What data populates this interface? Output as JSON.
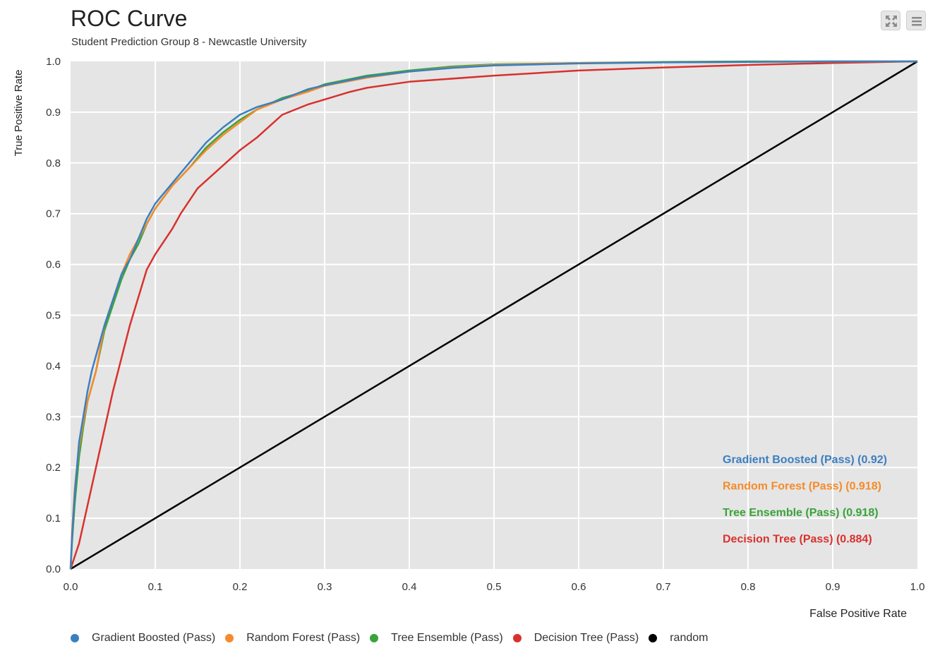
{
  "header": {
    "title": "ROC Curve",
    "subtitle": "Student Prediction Group 8 - Newcastle University"
  },
  "toolbar": {
    "fullscreen_icon": "fullscreen-icon",
    "menu_icon": "menu-icon"
  },
  "chart_data": {
    "type": "line",
    "title": "ROC Curve",
    "subtitle": "Student Prediction Group 8 - Newcastle University",
    "xlabel": "False Positive Rate",
    "ylabel": "True Positive Rate",
    "xlim": [
      0,
      1
    ],
    "ylim": [
      0,
      1
    ],
    "xticks": [
      "0.0",
      "0.1",
      "0.2",
      "0.3",
      "0.4",
      "0.5",
      "0.6",
      "0.7",
      "0.8",
      "0.9",
      "1.0"
    ],
    "yticks": [
      "0.0",
      "0.1",
      "0.2",
      "0.3",
      "0.4",
      "0.5",
      "0.6",
      "0.7",
      "0.8",
      "0.9",
      "1.0"
    ],
    "grid": true,
    "plot_background": "#e5e5e5",
    "legend_position": "bottom-left",
    "series": [
      {
        "name": "Gradient Boosted (Pass)",
        "color": "#3c7fc0",
        "annotation": "Gradient Boosted (Pass) (0.92)",
        "points": [
          [
            0,
            0
          ],
          [
            0.002,
            0.07
          ],
          [
            0.005,
            0.15
          ],
          [
            0.01,
            0.25
          ],
          [
            0.015,
            0.3
          ],
          [
            0.02,
            0.35
          ],
          [
            0.025,
            0.39
          ],
          [
            0.03,
            0.42
          ],
          [
            0.04,
            0.48
          ],
          [
            0.05,
            0.53
          ],
          [
            0.06,
            0.58
          ],
          [
            0.07,
            0.61
          ],
          [
            0.08,
            0.65
          ],
          [
            0.09,
            0.69
          ],
          [
            0.1,
            0.72
          ],
          [
            0.12,
            0.76
          ],
          [
            0.14,
            0.8
          ],
          [
            0.16,
            0.84
          ],
          [
            0.18,
            0.87
          ],
          [
            0.2,
            0.895
          ],
          [
            0.22,
            0.91
          ],
          [
            0.25,
            0.925
          ],
          [
            0.28,
            0.945
          ],
          [
            0.3,
            0.953
          ],
          [
            0.35,
            0.97
          ],
          [
            0.4,
            0.98
          ],
          [
            0.45,
            0.987
          ],
          [
            0.5,
            0.992
          ],
          [
            0.6,
            0.996
          ],
          [
            0.7,
            0.998
          ],
          [
            0.8,
            0.999
          ],
          [
            0.9,
            1.0
          ],
          [
            1.0,
            1.0
          ]
        ]
      },
      {
        "name": "Random Forest (Pass)",
        "color": "#f58b2a",
        "annotation": "Random Forest (Pass) (0.918)",
        "points": [
          [
            0,
            0
          ],
          [
            0.002,
            0.08
          ],
          [
            0.005,
            0.16
          ],
          [
            0.01,
            0.24
          ],
          [
            0.015,
            0.29
          ],
          [
            0.02,
            0.33
          ],
          [
            0.025,
            0.36
          ],
          [
            0.03,
            0.39
          ],
          [
            0.04,
            0.48
          ],
          [
            0.05,
            0.53
          ],
          [
            0.06,
            0.58
          ],
          [
            0.07,
            0.62
          ],
          [
            0.08,
            0.65
          ],
          [
            0.09,
            0.68
          ],
          [
            0.1,
            0.71
          ],
          [
            0.12,
            0.755
          ],
          [
            0.14,
            0.79
          ],
          [
            0.16,
            0.825
          ],
          [
            0.18,
            0.855
          ],
          [
            0.2,
            0.88
          ],
          [
            0.22,
            0.905
          ],
          [
            0.25,
            0.925
          ],
          [
            0.28,
            0.94
          ],
          [
            0.3,
            0.952
          ],
          [
            0.35,
            0.968
          ],
          [
            0.4,
            0.98
          ],
          [
            0.45,
            0.988
          ],
          [
            0.5,
            0.993
          ],
          [
            0.6,
            0.997
          ],
          [
            0.7,
            0.998
          ],
          [
            0.8,
            0.999
          ],
          [
            0.9,
            1.0
          ],
          [
            1.0,
            1.0
          ]
        ]
      },
      {
        "name": "Tree Ensemble (Pass)",
        "color": "#3aa33a",
        "annotation": "Tree Ensemble (Pass) (0.918)",
        "points": [
          [
            0,
            0
          ],
          [
            0.002,
            0.06
          ],
          [
            0.005,
            0.13
          ],
          [
            0.01,
            0.22
          ],
          [
            0.015,
            0.28
          ],
          [
            0.02,
            0.33
          ],
          [
            0.025,
            0.36
          ],
          [
            0.03,
            0.39
          ],
          [
            0.04,
            0.47
          ],
          [
            0.05,
            0.52
          ],
          [
            0.06,
            0.57
          ],
          [
            0.07,
            0.61
          ],
          [
            0.08,
            0.64
          ],
          [
            0.09,
            0.68
          ],
          [
            0.1,
            0.71
          ],
          [
            0.12,
            0.755
          ],
          [
            0.14,
            0.79
          ],
          [
            0.16,
            0.83
          ],
          [
            0.18,
            0.86
          ],
          [
            0.2,
            0.885
          ],
          [
            0.22,
            0.905
          ],
          [
            0.25,
            0.928
          ],
          [
            0.28,
            0.942
          ],
          [
            0.3,
            0.955
          ],
          [
            0.35,
            0.972
          ],
          [
            0.4,
            0.982
          ],
          [
            0.45,
            0.99
          ],
          [
            0.5,
            0.994
          ],
          [
            0.6,
            0.997
          ],
          [
            0.7,
            0.999
          ],
          [
            0.8,
            1.0
          ],
          [
            0.9,
            1.0
          ],
          [
            1.0,
            1.0
          ]
        ]
      },
      {
        "name": "Decision Tree (Pass)",
        "color": "#d8312d",
        "annotation": "Decision Tree (Pass) (0.884)",
        "points": [
          [
            0,
            0
          ],
          [
            0.01,
            0.05
          ],
          [
            0.03,
            0.2
          ],
          [
            0.05,
            0.35
          ],
          [
            0.07,
            0.48
          ],
          [
            0.09,
            0.59
          ],
          [
            0.1,
            0.62
          ],
          [
            0.12,
            0.67
          ],
          [
            0.13,
            0.7
          ],
          [
            0.15,
            0.75
          ],
          [
            0.17,
            0.78
          ],
          [
            0.2,
            0.825
          ],
          [
            0.22,
            0.85
          ],
          [
            0.25,
            0.895
          ],
          [
            0.28,
            0.915
          ],
          [
            0.3,
            0.925
          ],
          [
            0.33,
            0.94
          ],
          [
            0.35,
            0.948
          ],
          [
            0.4,
            0.96
          ],
          [
            0.5,
            0.972
          ],
          [
            0.6,
            0.982
          ],
          [
            0.7,
            0.988
          ],
          [
            0.8,
            0.993
          ],
          [
            0.9,
            0.997
          ],
          [
            1.0,
            1.0
          ]
        ]
      },
      {
        "name": "random",
        "color": "#000000",
        "points": [
          [
            0,
            0
          ],
          [
            1,
            1
          ]
        ]
      }
    ]
  }
}
